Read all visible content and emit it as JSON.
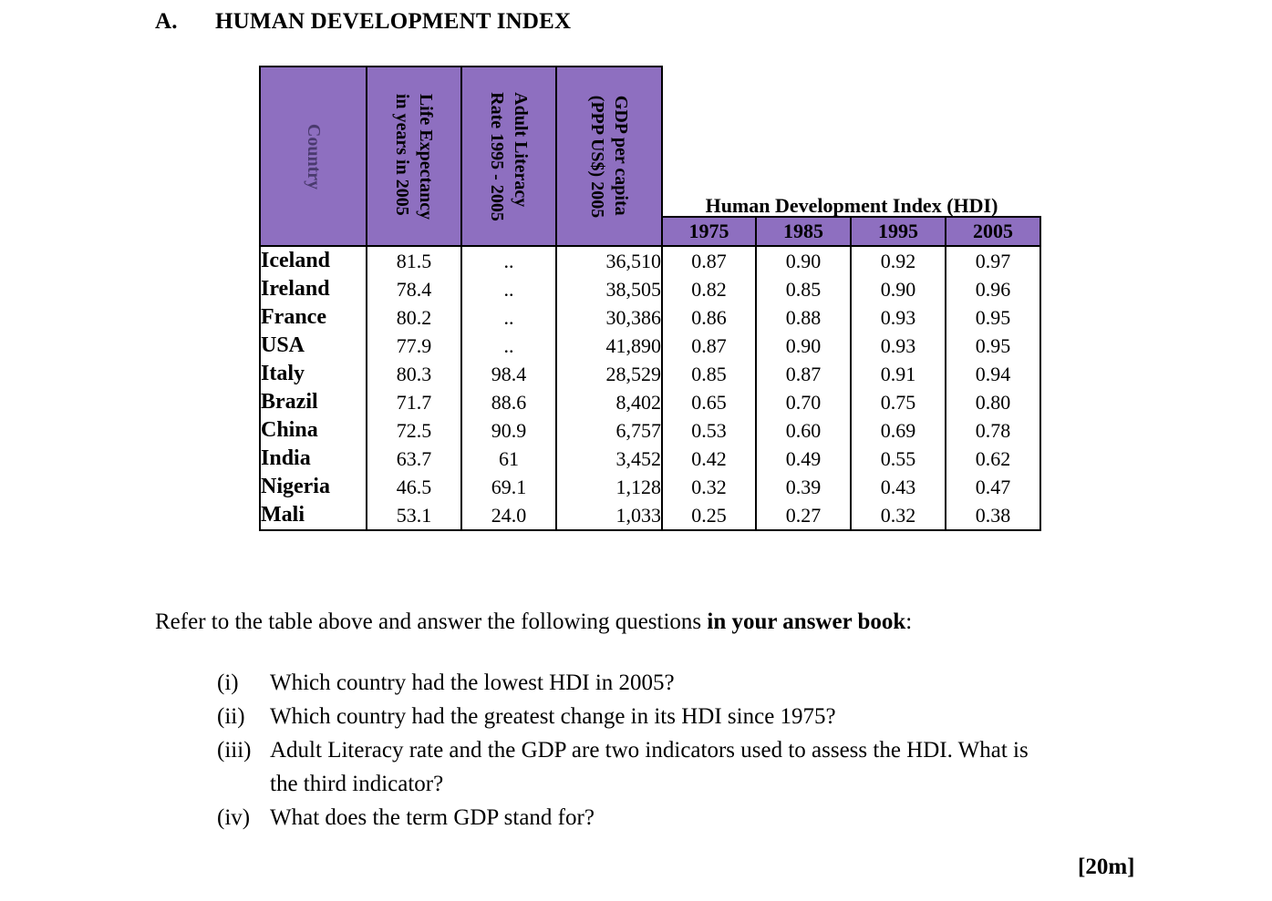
{
  "heading": {
    "letter": "A.",
    "title": "HUMAN DEVELOPMENT INDEX"
  },
  "table": {
    "headers": {
      "country": "Country",
      "life_expectancy_1": "Life Expectancy",
      "life_expectancy_2": "in years in 2005",
      "literacy_1": "Adult Literacy",
      "literacy_2": "Rate 1995 - 2005",
      "gdp_1": "GDP per capita",
      "gdp_2": "(PPP US$) 2005",
      "hdi_group": "Human Development Index (HDI)",
      "years": [
        "1975",
        "1985",
        "1995",
        "2005"
      ]
    },
    "rows": [
      {
        "country": "Iceland",
        "life": "81.5",
        "literacy": "..",
        "gdp": "36,510",
        "hdi": [
          "0.87",
          "0.90",
          "0.92",
          "0.97"
        ]
      },
      {
        "country": "Ireland",
        "life": "78.4",
        "literacy": "..",
        "gdp": "38,505",
        "hdi": [
          "0.82",
          "0.85",
          "0.90",
          "0.96"
        ]
      },
      {
        "country": "France",
        "life": "80.2",
        "literacy": "..",
        "gdp": "30,386",
        "hdi": [
          "0.86",
          "0.88",
          "0.93",
          "0.95"
        ]
      },
      {
        "country": "USA",
        "life": "77.9",
        "literacy": "..",
        "gdp": "41,890",
        "hdi": [
          "0.87",
          "0.90",
          "0.93",
          "0.95"
        ]
      },
      {
        "country": "Italy",
        "life": "80.3",
        "literacy": "98.4",
        "gdp": "28,529",
        "hdi": [
          "0.85",
          "0.87",
          "0.91",
          "0.94"
        ]
      },
      {
        "country": "Brazil",
        "life": "71.7",
        "literacy": "88.6",
        "gdp": "8,402",
        "hdi": [
          "0.65",
          "0.70",
          "0.75",
          "0.80"
        ]
      },
      {
        "country": "China",
        "life": "72.5",
        "literacy": "90.9",
        "gdp": "6,757",
        "hdi": [
          "0.53",
          "0.60",
          "0.69",
          "0.78"
        ]
      },
      {
        "country": "India",
        "life": "63.7",
        "literacy": "61",
        "gdp": "3,452",
        "hdi": [
          "0.42",
          "0.49",
          "0.55",
          "0.62"
        ]
      },
      {
        "country": "Nigeria",
        "life": "46.5",
        "literacy": "69.1",
        "gdp": "1,128",
        "hdi": [
          "0.32",
          "0.39",
          "0.43",
          "0.47"
        ]
      },
      {
        "country": "Mali",
        "life": "53.1",
        "literacy": "24.0",
        "gdp": "1,033",
        "hdi": [
          "0.25",
          "0.27",
          "0.32",
          "0.38"
        ]
      }
    ],
    "header_color": "#8E6FC0"
  },
  "instructions": {
    "text_plain": "Refer to the table above and answer the following questions ",
    "text_bold": "in your answer book",
    "text_end": ":"
  },
  "questions": [
    {
      "num": "(i)",
      "text": "Which country had the lowest HDI in 2005?"
    },
    {
      "num": "(ii)",
      "text": "Which country had the greatest change in its HDI since 1975?"
    },
    {
      "num": "(iii)",
      "text": "Adult Literacy rate and the GDP are two indicators used to assess the HDI. What is",
      "continuation": "the third indicator?"
    },
    {
      "num": "(iv)",
      "text": "What does the term GDP stand for?"
    }
  ],
  "marks": "[20m]"
}
